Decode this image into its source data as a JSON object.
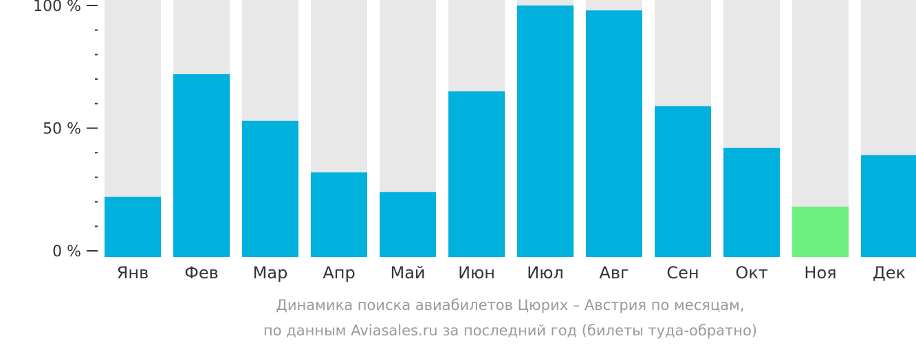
{
  "chart_data": {
    "type": "bar",
    "categories": [
      "Янв",
      "Фев",
      "Мар",
      "Апр",
      "Май",
      "Июн",
      "Июл",
      "Авг",
      "Сен",
      "Окт",
      "Ноя",
      "Дек"
    ],
    "values": [
      22,
      72,
      53,
      32,
      24,
      65,
      100,
      98,
      59,
      42,
      18,
      39
    ],
    "ylim": [
      0,
      100
    ],
    "y_ticks": [
      "0 %",
      "50 %",
      "100 %"
    ],
    "y_tick_values": [
      0,
      50,
      100
    ],
    "minor_tick_step": 10,
    "highlight_index": 10,
    "colors": {
      "bar": "#00b0dd",
      "highlight": "#6cf080",
      "background_bar": "#e8e8e8",
      "axis": "#333333"
    },
    "caption": [
      "Динамика поиска авиабилетов Цюрих – Австрия по месяцам,",
      "по данным Aviasales.ru за последний год (билеты туда-обратно)"
    ]
  }
}
